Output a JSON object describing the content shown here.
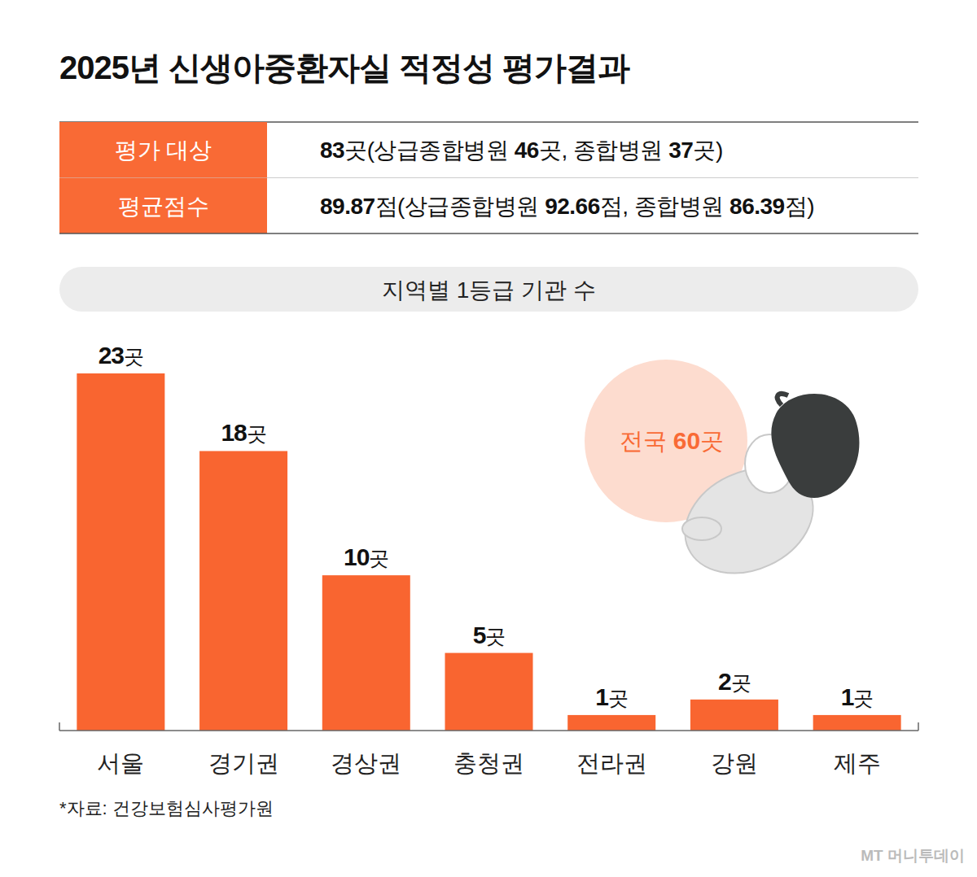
{
  "header": {
    "title": "2025년 신생아중환자실 적정성 평가결과"
  },
  "table": {
    "rows": [
      [
        "평가 대상",
        "83곳(상급종합병원 46곳, 종합병원 37곳)"
      ],
      [
        "평균점수",
        "89.87점(상급종합병원 92.66점, 종합병원 86.39점)"
      ]
    ]
  },
  "chart_data": {
    "type": "bar",
    "title": "지역별 1등급 기관 수",
    "categories": [
      "서울",
      "경기권",
      "경상권",
      "충청권",
      "전라권",
      "강원",
      "제주"
    ],
    "values": [
      23,
      18,
      10,
      5,
      1,
      2,
      1
    ],
    "value_labels": [
      "23곳",
      "18곳",
      "10곳",
      "5곳",
      "1곳",
      "2곳",
      "1곳"
    ],
    "color": "#f96530",
    "ylim": [
      0,
      23
    ],
    "yticks": [],
    "grid": false,
    "data_labels": true,
    "tick_labels": "x",
    "annotation": "전국 60곳"
  },
  "source": "*자료: 건강보험심사평가원",
  "watermark": "MT 머니투데이"
}
